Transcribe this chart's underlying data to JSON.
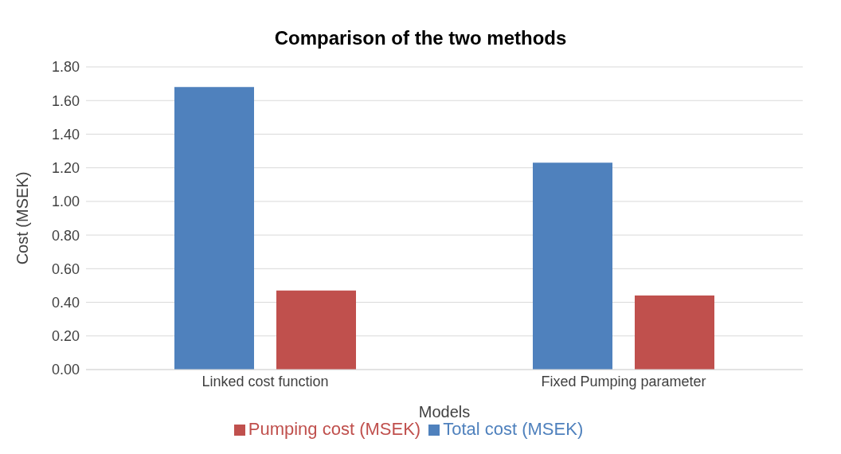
{
  "chart_data": {
    "type": "bar",
    "title": "Comparison of the two methods",
    "xlabel": "Models",
    "ylabel": "Cost (MSEK)",
    "categories": [
      "Linked cost function",
      "Fixed Pumping parameter"
    ],
    "series": [
      {
        "name": "Total cost (MSEK)",
        "color": "#4f81bd",
        "values": [
          1.68,
          1.23
        ]
      },
      {
        "name": "Pumping cost (MSEK)",
        "color": "#c0504d",
        "values": [
          0.47,
          0.44
        ]
      }
    ],
    "ylim": [
      0,
      1.8
    ],
    "yticks": [
      {
        "value": 0,
        "label": "0.00"
      },
      {
        "value": 0.2,
        "label": "0.20"
      },
      {
        "value": 0.4,
        "label": "0.40"
      },
      {
        "value": 0.6,
        "label": "0.60"
      },
      {
        "value": 0.8,
        "label": "0.80"
      },
      {
        "value": 1,
        "label": "1.00"
      },
      {
        "value": 1.2,
        "label": "1.20"
      },
      {
        "value": 1.4,
        "label": "1.40"
      },
      {
        "value": 1.6,
        "label": "1.60"
      },
      {
        "value": 1.8,
        "label": "1.80"
      }
    ],
    "grid": "y",
    "legend": "bottom"
  }
}
